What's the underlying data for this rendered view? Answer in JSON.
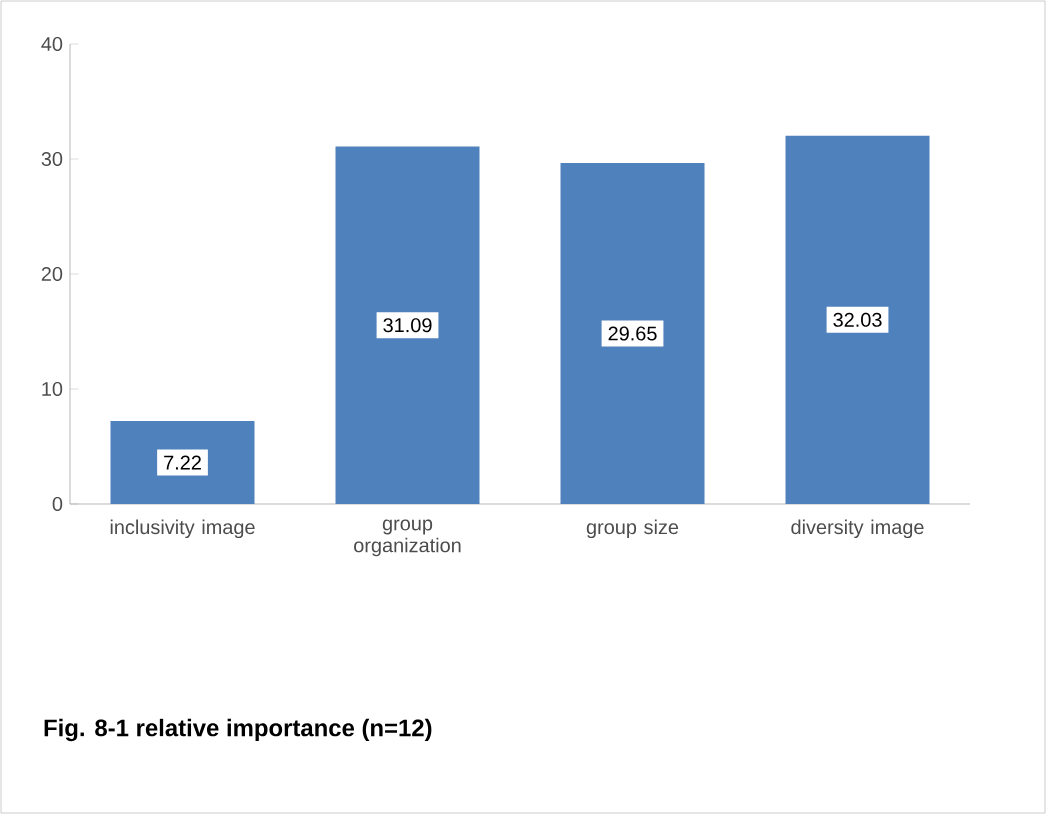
{
  "chart_data": {
    "type": "bar",
    "title": "Fig. 8-1 relative importance (n=12)",
    "categories": [
      "inclusivity image",
      "group organization",
      "group size",
      "diversity image"
    ],
    "values": [
      7.22,
      31.09,
      29.65,
      32.03
    ],
    "color": "#4f81bd",
    "ylim": [
      0,
      40
    ],
    "yticks": [
      0,
      10,
      20,
      30,
      40
    ],
    "data_labels": true
  }
}
